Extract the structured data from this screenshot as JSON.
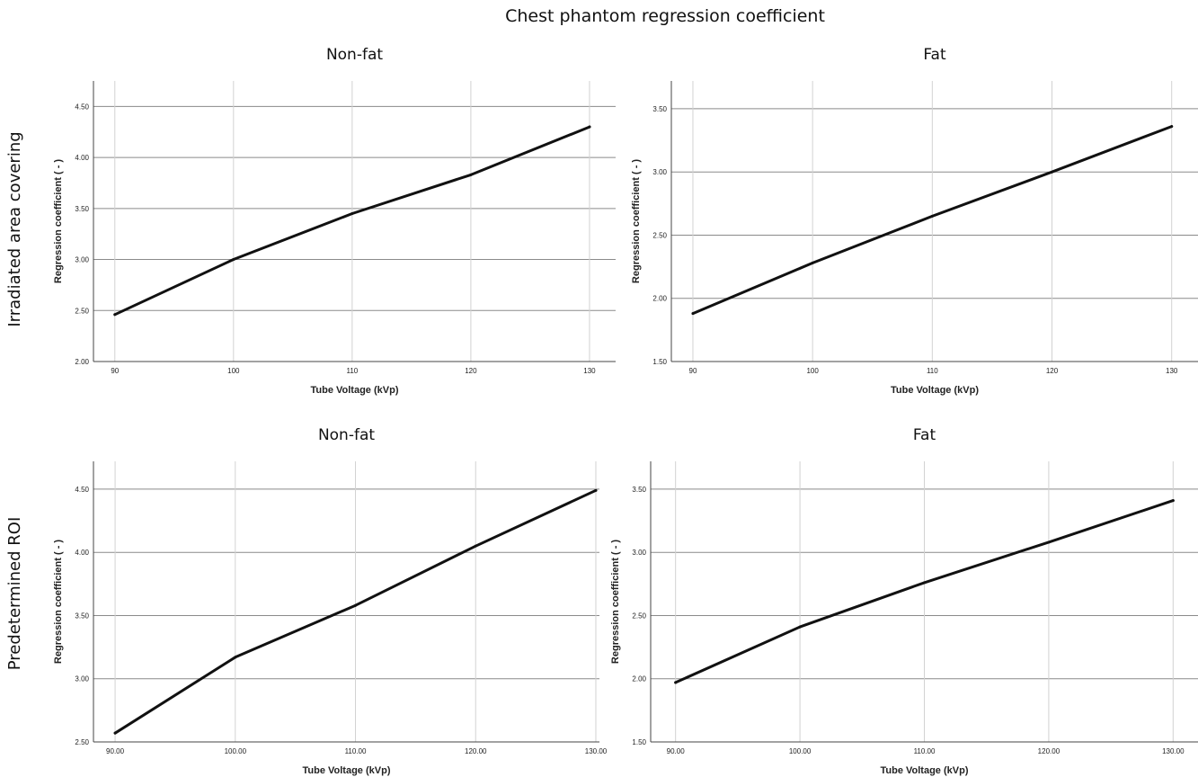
{
  "figure_title": "Chest phantom regression coefficient",
  "row_labels": [
    "Irradiated area covering",
    "Predetermined ROI"
  ],
  "chart_data": [
    {
      "type": "line",
      "row": "Irradiated area covering",
      "title": "Non-fat",
      "xlabel": "Tube Voltage (kVp)",
      "ylabel": "Regression coefficient ( - )",
      "x": [
        90,
        100,
        110,
        120,
        130
      ],
      "xticklabels": [
        "90",
        "100",
        "110",
        "120",
        "130"
      ],
      "y": [
        2.46,
        3.0,
        3.45,
        3.83,
        4.3
      ],
      "xlim": [
        88.2,
        132.2
      ],
      "ylim": [
        2.0,
        4.75
      ],
      "yticks": [
        2.0,
        2.5,
        3.0,
        3.5,
        4.0,
        4.5
      ],
      "yticklabels": [
        "2.00",
        "2.50",
        "3.00",
        "3.50",
        "4.00",
        "4.50"
      ],
      "grid": true
    },
    {
      "type": "line",
      "row": "Irradiated area covering",
      "title": "Fat",
      "xlabel": "Tube Voltage (kVp)",
      "ylabel": "Regression coefficient ( - )",
      "x": [
        90,
        100,
        110,
        120,
        130
      ],
      "xticklabels": [
        "90",
        "100",
        "110",
        "120",
        "130"
      ],
      "y": [
        1.88,
        2.28,
        2.65,
        3.0,
        3.36
      ],
      "xlim": [
        88.2,
        132.2
      ],
      "ylim": [
        1.5,
        3.72
      ],
      "yticks": [
        1.5,
        2.0,
        2.5,
        3.0,
        3.5
      ],
      "yticklabels": [
        "1.50",
        "2.00",
        "2.50",
        "3.00",
        "3.50"
      ],
      "grid": true
    },
    {
      "type": "line",
      "row": "Predetermined ROI",
      "title": "Non-fat",
      "xlabel": "Tube Voltage (kVp)",
      "ylabel": "Regression coefficient ( - )",
      "x": [
        90,
        100,
        110,
        120,
        130
      ],
      "xticklabels": [
        "90.00",
        "100.00",
        "110.00",
        "120.00",
        "130.00"
      ],
      "y": [
        2.57,
        3.17,
        3.58,
        4.05,
        4.49
      ],
      "xlim": [
        88.2,
        130.3
      ],
      "ylim": [
        2.5,
        4.72
      ],
      "yticks": [
        2.5,
        3.0,
        3.5,
        4.0,
        4.5
      ],
      "yticklabels": [
        "2.50",
        "3.00",
        "3.50",
        "4.00",
        "4.50"
      ],
      "grid": true
    },
    {
      "type": "line",
      "row": "Predetermined ROI",
      "title": "Fat",
      "xlabel": "Tube Voltage (kVp)",
      "ylabel": "Regression coefficient ( - )",
      "x": [
        90,
        100,
        110,
        120,
        130
      ],
      "xticklabels": [
        "90.00",
        "100.00",
        "110.00",
        "120.00",
        "130.00"
      ],
      "y": [
        1.97,
        2.41,
        2.76,
        3.08,
        3.41
      ],
      "xlim": [
        88.0,
        132.0
      ],
      "ylim": [
        1.5,
        3.72
      ],
      "yticks": [
        1.5,
        2.0,
        2.5,
        3.0,
        3.5
      ],
      "yticklabels": [
        "1.50",
        "2.00",
        "2.50",
        "3.00",
        "3.50"
      ],
      "grid": true
    }
  ]
}
